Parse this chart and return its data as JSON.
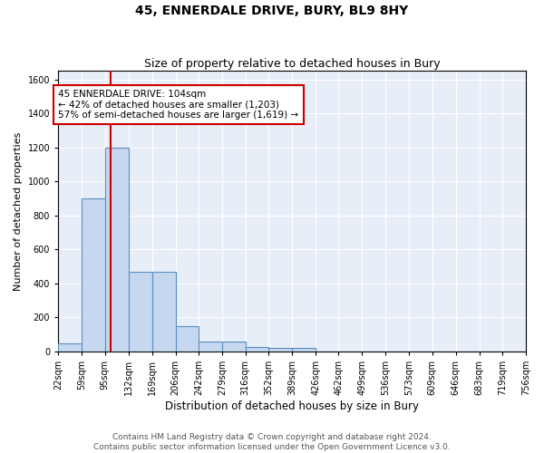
{
  "title": "45, ENNERDALE DRIVE, BURY, BL9 8HY",
  "subtitle": "Size of property relative to detached houses in Bury",
  "xlabel": "Distribution of detached houses by size in Bury",
  "ylabel": "Number of detached properties",
  "bin_edges": [
    22,
    59,
    95,
    132,
    169,
    206,
    242,
    279,
    316,
    352,
    389,
    426,
    462,
    499,
    536,
    573,
    609,
    646,
    683,
    719,
    756
  ],
  "bar_heights": [
    50,
    900,
    1200,
    470,
    470,
    150,
    60,
    60,
    25,
    20,
    20,
    0,
    0,
    0,
    0,
    0,
    0,
    0,
    0,
    0
  ],
  "bar_color": "#c5d8ef",
  "bar_edge_color": "#5a8fc0",
  "red_line_x": 104,
  "annotation_text": "45 ENNERDALE DRIVE: 104sqm\n← 42% of detached houses are smaller (1,203)\n57% of semi-detached houses are larger (1,619) →",
  "annotation_box_color": "#ffffff",
  "annotation_box_edge": "#cc0000",
  "annotation_text_color": "#000000",
  "tick_labels": [
    "22sqm",
    "59sqm",
    "95sqm",
    "132sqm",
    "169sqm",
    "206sqm",
    "242sqm",
    "279sqm",
    "316sqm",
    "352sqm",
    "389sqm",
    "426sqm",
    "462sqm",
    "499sqm",
    "536sqm",
    "573sqm",
    "609sqm",
    "646sqm",
    "683sqm",
    "719sqm",
    "756sqm"
  ],
  "ylim": [
    0,
    1650
  ],
  "yticks": [
    0,
    200,
    400,
    600,
    800,
    1000,
    1200,
    1400,
    1600
  ],
  "background_color": "#e8eef8",
  "footer": "Contains HM Land Registry data © Crown copyright and database right 2024.\nContains public sector information licensed under the Open Government Licence v3.0.",
  "title_fontsize": 10,
  "subtitle_fontsize": 9,
  "xlabel_fontsize": 8.5,
  "ylabel_fontsize": 8,
  "tick_fontsize": 7,
  "footer_fontsize": 6.5,
  "annot_fontsize": 7.5
}
